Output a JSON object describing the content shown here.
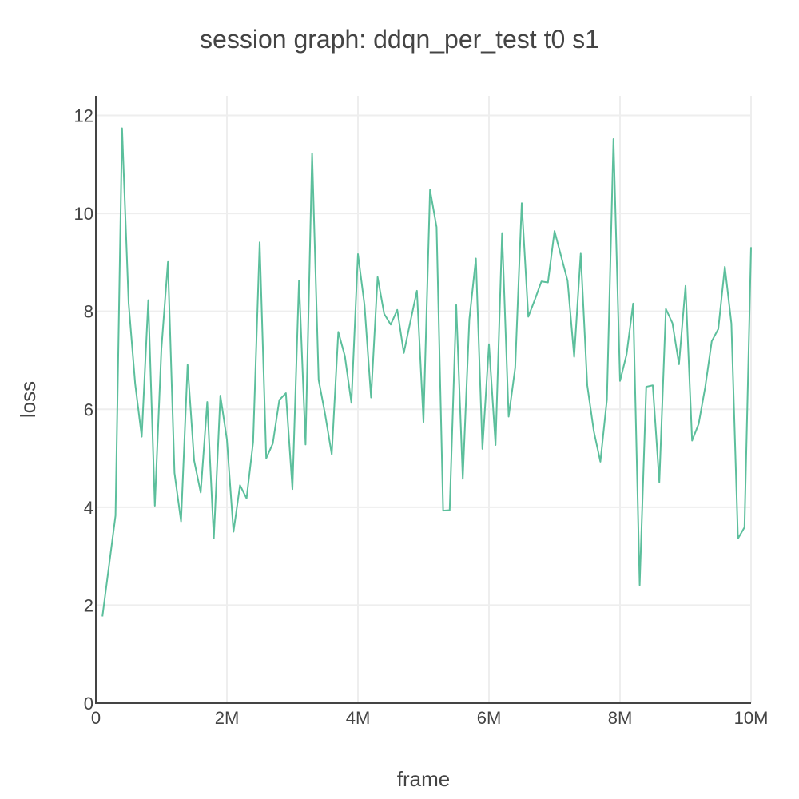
{
  "chart_data": {
    "type": "line",
    "title": "session graph: ddqn_per_test t0 s1",
    "xlabel": "frame",
    "ylabel": "loss",
    "xlim": [
      0,
      10000000
    ],
    "ylim": [
      0,
      12.4
    ],
    "grid": true,
    "x_ticks": [
      {
        "value": 0,
        "label": "0"
      },
      {
        "value": 2000000,
        "label": "2M"
      },
      {
        "value": 4000000,
        "label": "4M"
      },
      {
        "value": 6000000,
        "label": "6M"
      },
      {
        "value": 8000000,
        "label": "8M"
      },
      {
        "value": 10000000,
        "label": "10M"
      }
    ],
    "y_ticks": [
      {
        "value": 0,
        "label": "0"
      },
      {
        "value": 2,
        "label": "2"
      },
      {
        "value": 4,
        "label": "4"
      },
      {
        "value": 6,
        "label": "6"
      },
      {
        "value": 8,
        "label": "8"
      },
      {
        "value": 10,
        "label": "10"
      },
      {
        "value": 12,
        "label": "12"
      }
    ],
    "series": [
      {
        "color": "#5cbf9c",
        "x": [
          100000,
          300000,
          400000,
          500000,
          600000,
          700000,
          800000,
          900000,
          1000000,
          1100000,
          1200000,
          1300000,
          1400000,
          1500000,
          1600000,
          1700000,
          1800000,
          1900000,
          2000000,
          2100000,
          2200000,
          2300000,
          2400000,
          2500000,
          2600000,
          2700000,
          2800000,
          2900000,
          3000000,
          3100000,
          3200000,
          3300000,
          3400000,
          3500000,
          3600000,
          3700000,
          3800000,
          3900000,
          4000000,
          4100000,
          4200000,
          4300000,
          4400000,
          4500000,
          4600000,
          4700000,
          4800000,
          4900000,
          5000000,
          5100000,
          5200000,
          5300000,
          5400000,
          5500000,
          5600000,
          5700000,
          5800000,
          5900000,
          6000000,
          6100000,
          6200000,
          6300000,
          6400000,
          6500000,
          6600000,
          6700000,
          6800000,
          6900000,
          7000000,
          7100000,
          7200000,
          7300000,
          7400000,
          7500000,
          7600000,
          7700000,
          7800000,
          7900000,
          8000000,
          8100000,
          8200000,
          8300000,
          8400000,
          8500000,
          8600000,
          8700000,
          8800000,
          8900000,
          9000000,
          9100000,
          9200000,
          9300000,
          9400000,
          9500000,
          9600000,
          9700000,
          9800000,
          9900000,
          10000000
        ],
        "values": [
          1.77,
          3.83,
          11.74,
          8.17,
          6.52,
          5.44,
          8.23,
          4.03,
          7.23,
          9.01,
          4.7,
          3.71,
          6.91,
          4.95,
          4.3,
          6.15,
          3.36,
          6.28,
          5.38,
          3.5,
          4.45,
          4.18,
          5.33,
          9.41,
          5.0,
          5.3,
          6.19,
          6.33,
          4.37,
          8.63,
          5.28,
          11.23,
          6.6,
          5.89,
          5.08,
          7.58,
          7.09,
          6.13,
          9.17,
          8.13,
          6.24,
          8.7,
          7.95,
          7.73,
          8.03,
          7.15,
          7.79,
          8.42,
          5.74,
          10.48,
          9.72,
          3.93,
          3.94,
          8.13,
          4.58,
          7.83,
          9.08,
          5.19,
          7.33,
          5.27,
          9.6,
          5.85,
          6.85,
          10.21,
          7.89,
          8.24,
          8.61,
          8.59,
          9.64,
          9.13,
          8.62,
          7.07,
          9.18,
          6.49,
          5.55,
          4.93,
          6.2,
          11.52,
          6.58,
          7.12,
          8.16,
          2.41,
          6.46,
          6.49,
          4.51,
          8.05,
          7.76,
          6.92,
          8.52,
          5.36,
          5.7,
          6.45,
          7.39,
          7.64,
          8.91,
          7.75,
          3.36,
          3.59,
          9.31
        ]
      }
    ]
  }
}
